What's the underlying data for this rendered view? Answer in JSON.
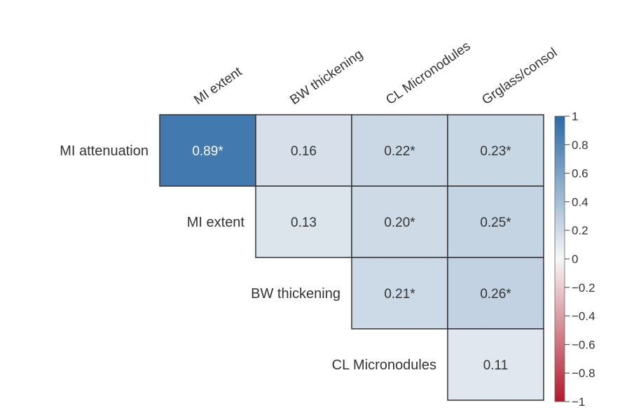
{
  "chart_data": {
    "type": "heatmap",
    "layout": "upper-triangle",
    "columns": [
      "MI extent",
      "BW thickening",
      "CL Micronodules",
      "Grglass/consol"
    ],
    "rows": [
      "MI attenuation",
      "MI extent",
      "BW thickening",
      "CL Micronodules"
    ],
    "cells": [
      {
        "row": 0,
        "col": 0,
        "value": 0.89,
        "label": "0.89*"
      },
      {
        "row": 0,
        "col": 1,
        "value": 0.16,
        "label": "0.16"
      },
      {
        "row": 0,
        "col": 2,
        "value": 0.22,
        "label": "0.22*"
      },
      {
        "row": 0,
        "col": 3,
        "value": 0.23,
        "label": "0.23*"
      },
      {
        "row": 1,
        "col": 1,
        "value": 0.13,
        "label": "0.13"
      },
      {
        "row": 1,
        "col": 2,
        "value": 0.2,
        "label": "0.20*"
      },
      {
        "row": 1,
        "col": 3,
        "value": 0.25,
        "label": "0.25*"
      },
      {
        "row": 2,
        "col": 2,
        "value": 0.21,
        "label": "0.21*"
      },
      {
        "row": 2,
        "col": 3,
        "value": 0.26,
        "label": "0.26*"
      },
      {
        "row": 3,
        "col": 3,
        "value": 0.11,
        "label": "0.11"
      }
    ],
    "color_scale": {
      "min": -1,
      "max": 1,
      "low_color": "#b2182b",
      "mid_color": "#f7f7f7",
      "high_color": "#2c6aa6",
      "ticks": [
        {
          "value": 1,
          "label": "1"
        },
        {
          "value": 0.8,
          "label": "0.8"
        },
        {
          "value": 0.6,
          "label": "0.6"
        },
        {
          "value": 0.4,
          "label": "0.4"
        },
        {
          "value": 0.2,
          "label": "0.2"
        },
        {
          "value": 0,
          "label": "0"
        },
        {
          "value": -0.2,
          "label": "−0.2"
        },
        {
          "value": -0.4,
          "label": "−0.4"
        },
        {
          "value": -0.6,
          "label": "−0.6"
        },
        {
          "value": -0.8,
          "label": "−0.8"
        },
        {
          "value": -1,
          "label": "−1"
        }
      ]
    }
  }
}
